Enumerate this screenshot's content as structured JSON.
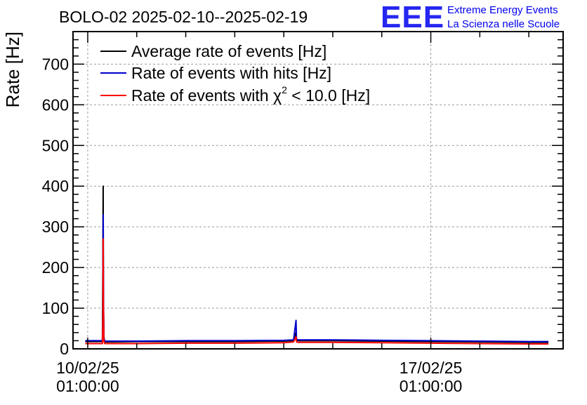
{
  "chart_data": {
    "type": "line",
    "title": "BOLO-02 2025-02-10--2025-02-19",
    "ylabel": "Rate [Hz]",
    "xlabel": "",
    "x_unit": "days since 10/02/25 01:00:00",
    "xlim": [
      -0.3,
      9.7
    ],
    "ylim": [
      0,
      780
    ],
    "y_ticks": [
      0,
      100,
      200,
      300,
      400,
      500,
      600,
      700
    ],
    "x_ticks": [
      {
        "value": 0,
        "line1": "10/02/25",
        "line2": "01:00:00"
      },
      {
        "value": 7,
        "line1": "17/02/25",
        "line2": "01:00:00"
      }
    ],
    "grid": true,
    "legend_position": "top-left",
    "series": [
      {
        "name": "Average rate of events [Hz]",
        "color": "#000000",
        "x": [
          -0.05,
          0.3,
          0.31,
          0.315,
          0.32,
          0.33,
          0.34,
          0.35,
          0.5,
          1.0,
          2.0,
          3.0,
          4.0,
          4.2,
          4.25,
          4.26,
          4.3,
          4.5,
          5.0,
          6.0,
          7.0,
          8.0,
          9.0,
          9.4
        ],
        "y": [
          18,
          18,
          220,
          400,
          120,
          25,
          20,
          17,
          17,
          18,
          18,
          18,
          19,
          20,
          40,
          21,
          20,
          20,
          20,
          19,
          18,
          17,
          16,
          16
        ]
      },
      {
        "name": "Rate of events with hits [Hz]",
        "color": "#0000cc",
        "x": [
          -0.05,
          0.3,
          0.31,
          0.315,
          0.32,
          0.33,
          0.34,
          0.35,
          0.5,
          1.0,
          2.0,
          3.0,
          4.0,
          4.2,
          4.25,
          4.26,
          4.3,
          4.5,
          5.0,
          6.0,
          7.0,
          8.0,
          9.0,
          9.4
        ],
        "y": [
          20,
          20,
          110,
          330,
          150,
          30,
          22,
          19,
          19,
          19,
          20,
          20,
          21,
          22,
          70,
          23,
          22,
          22,
          22,
          21,
          20,
          19,
          18,
          18
        ]
      },
      {
        "name": "Rate of events with χ² < 10.0 [Hz]",
        "legend_prefix": "Rate of events with χ",
        "legend_sup": "2",
        "legend_suffix": " < 10.0 [Hz]",
        "color": "#ff0000",
        "x": [
          -0.05,
          0.3,
          0.31,
          0.315,
          0.32,
          0.33,
          0.34,
          0.35,
          0.5,
          1.0,
          2.0,
          3.0,
          4.0,
          4.2,
          4.25,
          4.26,
          4.3,
          4.5,
          5.0,
          6.0,
          7.0,
          8.0,
          9.0,
          9.4
        ],
        "y": [
          13,
          13,
          80,
          270,
          120,
          20,
          15,
          13,
          13,
          13,
          14,
          14,
          15,
          17,
          30,
          17,
          16,
          16,
          16,
          15,
          14,
          13,
          12,
          12
        ]
      }
    ]
  },
  "logo": {
    "letters": "EEE",
    "line1": "Extreme Energy Events",
    "line2": "La Scienza nelle Scuole",
    "color": "#0000ee"
  }
}
